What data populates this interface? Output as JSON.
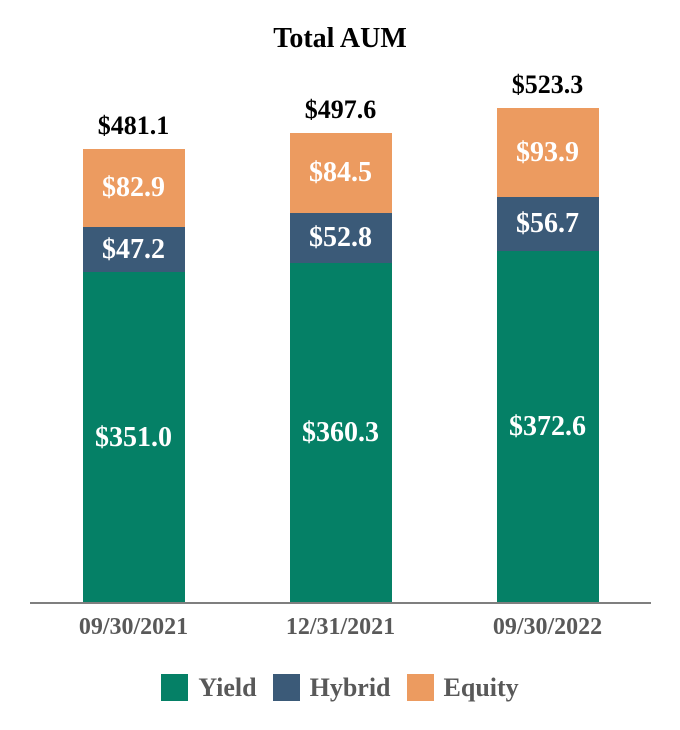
{
  "title": "Total AUM",
  "chart_data": {
    "type": "bar",
    "stacked": true,
    "title": "Total AUM",
    "categories": [
      "09/30/2021",
      "12/31/2021",
      "09/30/2022"
    ],
    "series": [
      {
        "name": "Yield",
        "color": "#058066",
        "values": [
          351.0,
          360.3,
          372.6
        ]
      },
      {
        "name": "Hybrid",
        "color": "#3B5A78",
        "values": [
          47.2,
          52.8,
          56.7
        ]
      },
      {
        "name": "Equity",
        "color": "#EC9B60",
        "values": [
          82.9,
          84.5,
          93.9
        ]
      }
    ],
    "totals": [
      481.1,
      497.6,
      523.3
    ],
    "value_prefix": "$",
    "legend_position": "bottom",
    "y_axis_visible": false,
    "gridlines": false,
    "axis_line_color": "#7f7f7f",
    "category_label_color": "#595959",
    "segment_label_color": "#ffffff",
    "total_label_color": "#000000"
  },
  "bars": [
    {
      "category": "09/30/2021",
      "total_label": "$481.1",
      "equity_label": "$82.9",
      "hybrid_label": "$47.2",
      "yield_label": "$351.0"
    },
    {
      "category": "12/31/2021",
      "total_label": "$497.6",
      "equity_label": "$84.5",
      "hybrid_label": "$52.8",
      "yield_label": "$360.3"
    },
    {
      "category": "09/30/2022",
      "total_label": "$523.3",
      "equity_label": "$93.9",
      "hybrid_label": "$56.7",
      "yield_label": "$372.6"
    }
  ],
  "legend": {
    "items": [
      {
        "label": "Yield",
        "color": "#058066"
      },
      {
        "label": "Hybrid",
        "color": "#3B5A78"
      },
      {
        "label": "Equity",
        "color": "#EC9B60"
      }
    ]
  }
}
